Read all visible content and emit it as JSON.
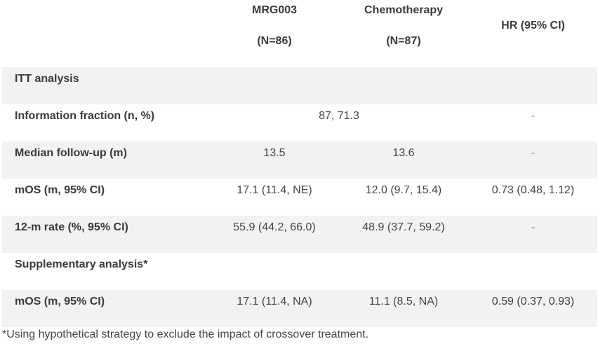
{
  "header": {
    "col1_line1": "MRG003",
    "col1_line2": "(N=86)",
    "col2_line1": "Chemotherapy",
    "col2_line2": "(N=87)",
    "col3": "HR (95% CI)"
  },
  "rows": [
    {
      "label": "ITT analysis"
    },
    {
      "label": "Information fraction (n, %)",
      "span": "87, 71.3",
      "v3": "-"
    },
    {
      "label": "Median follow-up (m)",
      "v1": "13.5",
      "v2": "13.6",
      "v3": "-"
    },
    {
      "label": "mOS (m, 95% CI)",
      "v1": "17.1 (11.4, NE)",
      "v2": "12.0 (9.7, 15.4)",
      "v3": "0.73 (0.48, 1.12)"
    },
    {
      "label": "12-m rate (%, 95% CI)",
      "v1": "55.9 (44.2, 66.0)",
      "v2": "48.9 (37.7, 59.2)",
      "v3": "-"
    },
    {
      "label": "Supplementary analysis*"
    },
    {
      "label": "mOS (m, 95% CI)",
      "v1": "17.1 (11.4, NA)",
      "v2": "11.1 (8.5, NA)",
      "v3": "0.59 (0.37, 0.93)"
    }
  ],
  "footnote": "*Using hypothetical strategy to exclude the impact of crossover treatment."
}
